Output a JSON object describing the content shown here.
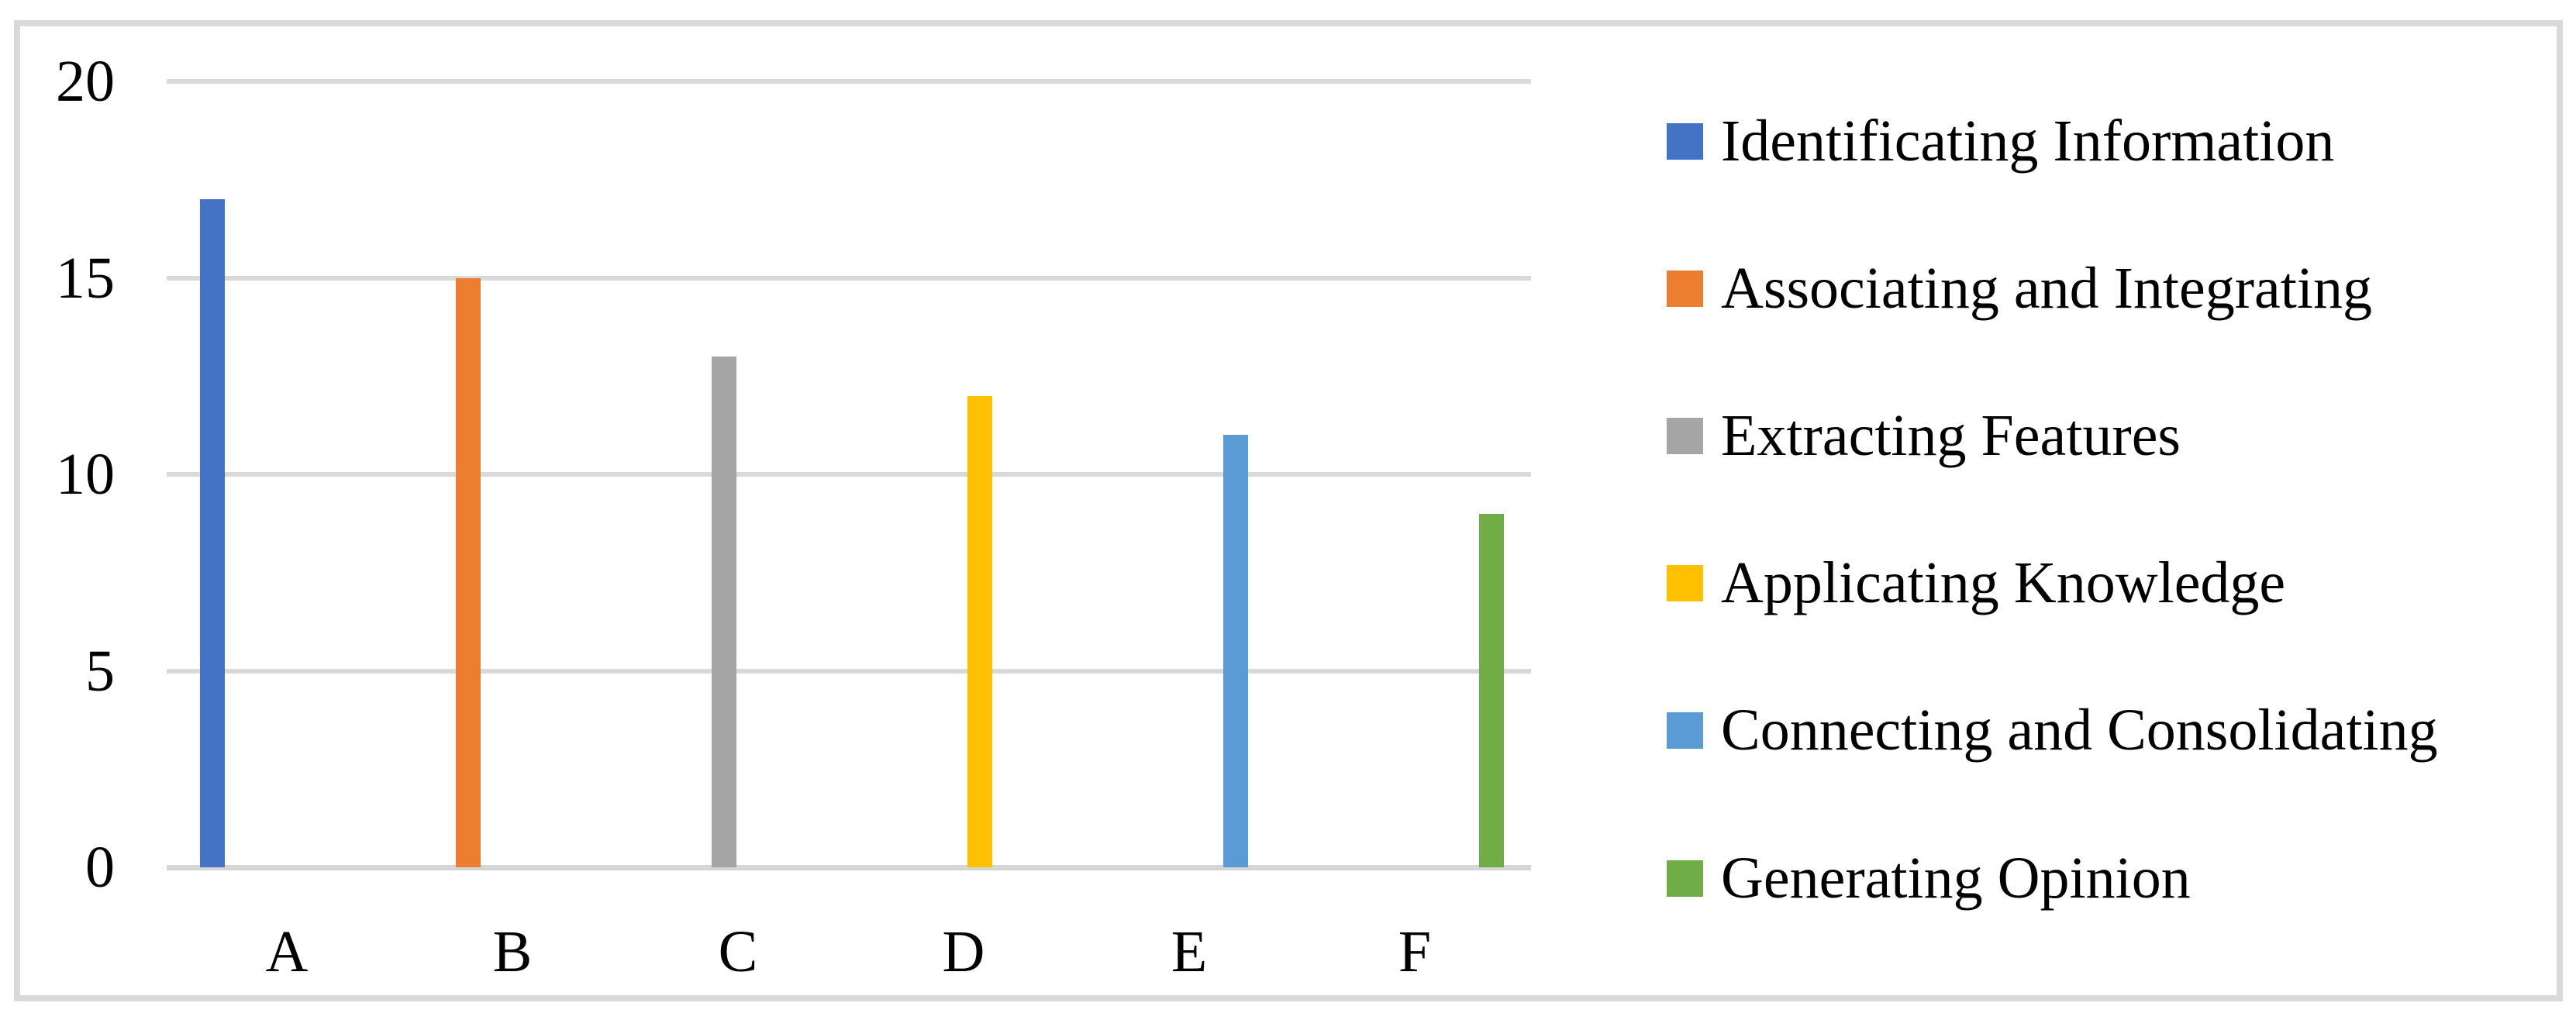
{
  "chart_data": {
    "type": "bar",
    "categories": [
      "A",
      "B",
      "C",
      "D",
      "E",
      "F"
    ],
    "series": [
      {
        "name": "Identificating Information",
        "color": "#4472C4",
        "category": "A",
        "value": 17
      },
      {
        "name": "Associating and Integrating",
        "color": "#ED7D31",
        "category": "B",
        "value": 15
      },
      {
        "name": "Extracting Features",
        "color": "#A5A5A5",
        "category": "C",
        "value": 13
      },
      {
        "name": "Applicating Knowledge",
        "color": "#FFC000",
        "category": "D",
        "value": 12
      },
      {
        "name": "Connecting and Consolidating",
        "color": "#5B9BD5",
        "category": "E",
        "value": 11
      },
      {
        "name": "Generating Opinion",
        "color": "#70AD47",
        "category": "F",
        "value": 9
      }
    ],
    "values": [
      17,
      15,
      13,
      12,
      11,
      9
    ],
    "yticks": [
      0,
      5,
      10,
      15,
      20
    ],
    "ylim": [
      0,
      20
    ],
    "grid": true,
    "legend_position": "right",
    "xlabel": "",
    "ylabel": ""
  },
  "colors": {
    "gridline": "#D9D9D9",
    "axis_line": "#D6D6D6",
    "figure_border": "#D9D9D9",
    "background": "#FFFFFF"
  }
}
